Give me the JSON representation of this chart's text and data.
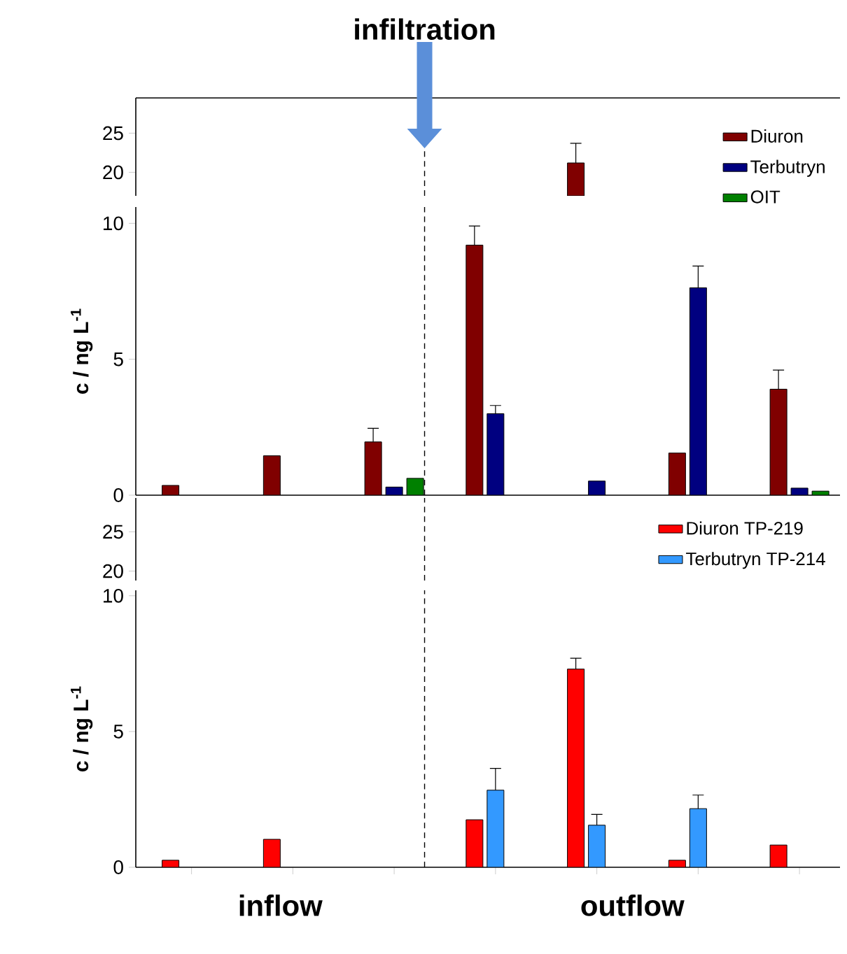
{
  "chart_data": [
    {
      "type": "bar",
      "title": "infiltration",
      "categories": [
        null,
        null,
        null,
        null,
        null,
        null,
        null
      ],
      "series": [
        {
          "color": "#800000",
          "values": [
            null,
            null,
            null,
            null,
            21.2,
            null,
            null
          ],
          "errors": [
            null,
            null,
            null,
            null,
            2.5,
            null,
            null
          ]
        }
      ],
      "ylim": [
        17,
        29.5
      ],
      "yticks": [
        20,
        25
      ],
      "tick_labels": "y"
    },
    {
      "type": "bar",
      "ylabel": "c / ng L$^{-1}$",
      "categories": [
        null,
        null,
        null,
        null,
        null,
        null,
        null
      ],
      "series": [
        {
          "name": "Diuron",
          "color": "#800000",
          "values": [
            0.36,
            1.45,
            1.96,
            9.2,
            null,
            1.55,
            3.9
          ],
          "errors": [
            null,
            null,
            0.5,
            0.7,
            null,
            null,
            0.7
          ]
        },
        {
          "name": "Terbutryn",
          "color": "#000080",
          "values": [
            null,
            null,
            0.3,
            3.0,
            0.52,
            7.63,
            0.26
          ],
          "errors": [
            null,
            null,
            null,
            0.3,
            null,
            0.8,
            null
          ]
        },
        {
          "name": "OIT",
          "color": "#008000",
          "values": [
            null,
            null,
            0.62,
            null,
            null,
            null,
            0.15
          ]
        }
      ],
      "ylim": [
        0,
        10.6
      ],
      "yticks": [
        0,
        5,
        10
      ],
      "tick_labels": "y",
      "legend": "top right"
    },
    {
      "type": "bar",
      "categories": [
        null,
        null,
        null,
        null,
        null,
        null,
        null
      ],
      "ylim": [
        18.8,
        29.3
      ],
      "yticks": [
        20,
        25
      ],
      "tick_labels": "y"
    },
    {
      "type": "bar",
      "ylabel": "c / ng L$^{-1}$",
      "categories": [
        null,
        null,
        null,
        null,
        null,
        null,
        null
      ],
      "series": [
        {
          "name": "Diuron TP-219",
          "color": "#ff0000",
          "values": [
            0.26,
            1.03,
            null,
            1.75,
            7.3,
            0.26,
            0.82
          ],
          "errors": [
            null,
            null,
            null,
            null,
            0.4,
            null,
            null
          ]
        },
        {
          "name": "Terbutryn TP-214",
          "color": "#3399ff",
          "values": [
            null,
            null,
            null,
            2.84,
            1.55,
            2.16,
            null
          ],
          "errors": [
            null,
            null,
            null,
            0.8,
            0.4,
            0.5,
            null
          ]
        }
      ],
      "ylim": [
        0,
        10.2
      ],
      "yticks": [
        0,
        5,
        10
      ],
      "tick_labels": "y",
      "legend": "top right",
      "annotations": [
        "inflow",
        "outflow"
      ]
    }
  ]
}
